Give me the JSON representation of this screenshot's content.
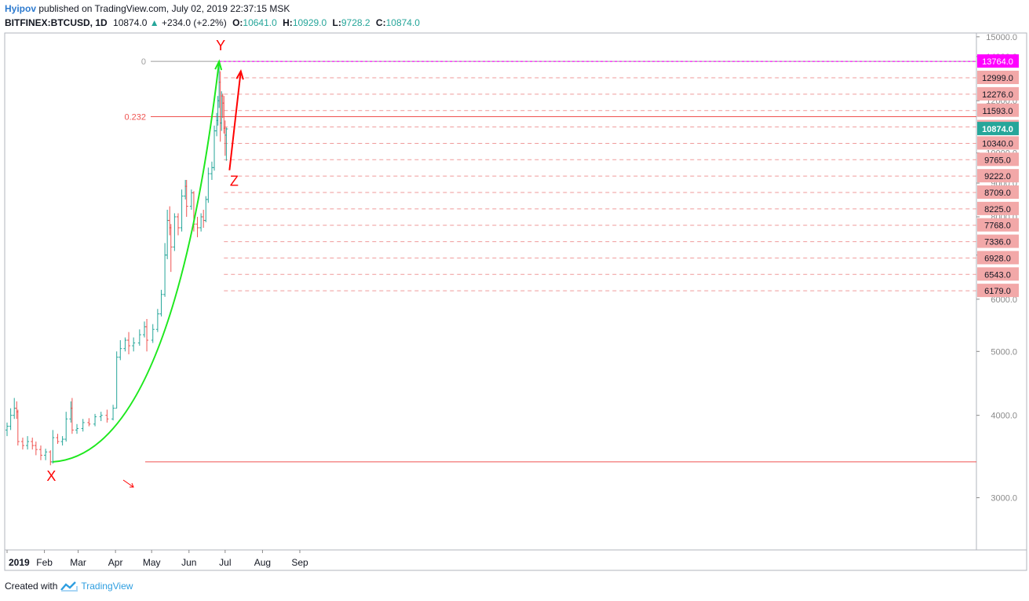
{
  "header": {
    "author": "Hyipov",
    "published": "published on TradingView.com, July 02, 2019 22:37:15 MSK",
    "symbol": "BITFINEX:BTCUSD, 1D",
    "price": "10874.0",
    "change": "+234.0 (+2.2%)",
    "o_label": "O:",
    "o_value": "10641.0",
    "h_label": "H:",
    "h_value": "10929.0",
    "l_label": "L:",
    "l_value": "9728.2",
    "c_label": "C:",
    "c_value": "10874.0"
  },
  "footer": {
    "created": "Created with",
    "brand": "TradingView"
  },
  "colors": {
    "up": "#26a69a",
    "down": "#ef5350",
    "magenta": "#ff00ff",
    "level_bg": "#f2a8a8",
    "price_bg": "#26a69a",
    "curve": "#1de81d",
    "arrow": "#ff0000",
    "axis": "#8a8a8a"
  },
  "chart_data": {
    "type": "candlestick",
    "title": "BITFINEX:BTCUSD, 1D",
    "ylim": [
      2500,
      15200
    ],
    "y_ticks": [
      "3000.0",
      "4000.0",
      "5000.0",
      "6000.0",
      "7000.0",
      "8000.0",
      "9000.0",
      "10000.0",
      "12000.0",
      "14000.0",
      "15000.0"
    ],
    "x_ticks": [
      "2019",
      "Feb",
      "Mar",
      "Apr",
      "May",
      "Jun",
      "Jul",
      "Aug",
      "Sep"
    ],
    "levels": [
      "12999.0",
      "12276.0",
      "11593.0",
      "10949.0",
      "10340.0",
      "9765.0",
      "9222.0",
      "8709.0",
      "8225.0",
      "7768.0",
      "7336.0",
      "6928.0",
      "6543.0",
      "6179.0"
    ],
    "top_level": "13764.0",
    "last_price": "10874.0",
    "fib_labels": [
      "0",
      "0.232"
    ],
    "fib_values": [
      13764,
      11350
    ],
    "support_level": 3400,
    "wave_labels": [
      "X",
      "Y",
      "Z"
    ],
    "wave_points": [
      {
        "date": "2019-02-08",
        "price": 3400
      },
      {
        "date": "2019-06-26",
        "price": 13764
      },
      {
        "date": "2019-07-02",
        "price": 9728
      }
    ],
    "arrow_target": {
      "date": "2019-07-14",
      "price": 13300
    },
    "series": [
      {
        "date": "2019-01-01",
        "o": 3800,
        "h": 3900,
        "l": 3720,
        "c": 3850
      },
      {
        "date": "2019-01-04",
        "o": 3850,
        "h": 4100,
        "l": 3800,
        "c": 4000
      },
      {
        "date": "2019-01-07",
        "o": 4000,
        "h": 4250,
        "l": 3950,
        "c": 4100
      },
      {
        "date": "2019-01-09",
        "o": 4100,
        "h": 4200,
        "l": 3950,
        "c": 4050
      },
      {
        "date": "2019-01-10",
        "o": 4050,
        "h": 4080,
        "l": 3600,
        "c": 3650
      },
      {
        "date": "2019-01-14",
        "o": 3650,
        "h": 3700,
        "l": 3550,
        "c": 3600
      },
      {
        "date": "2019-01-18",
        "o": 3600,
        "h": 3720,
        "l": 3550,
        "c": 3650
      },
      {
        "date": "2019-01-22",
        "o": 3650,
        "h": 3700,
        "l": 3550,
        "c": 3600
      },
      {
        "date": "2019-01-25",
        "o": 3600,
        "h": 3650,
        "l": 3480,
        "c": 3550
      },
      {
        "date": "2019-01-29",
        "o": 3550,
        "h": 3600,
        "l": 3420,
        "c": 3480
      },
      {
        "date": "2019-02-02",
        "o": 3480,
        "h": 3560,
        "l": 3420,
        "c": 3520
      },
      {
        "date": "2019-02-06",
        "o": 3520,
        "h": 3540,
        "l": 3360,
        "c": 3400
      },
      {
        "date": "2019-02-08",
        "o": 3400,
        "h": 3800,
        "l": 3380,
        "c": 3700
      },
      {
        "date": "2019-02-12",
        "o": 3700,
        "h": 3750,
        "l": 3620,
        "c": 3650
      },
      {
        "date": "2019-02-16",
        "o": 3650,
        "h": 3720,
        "l": 3600,
        "c": 3680
      },
      {
        "date": "2019-02-19",
        "o": 3680,
        "h": 4050,
        "l": 3650,
        "c": 3950
      },
      {
        "date": "2019-02-23",
        "o": 3950,
        "h": 4200,
        "l": 3900,
        "c": 4100
      },
      {
        "date": "2019-02-24",
        "o": 4100,
        "h": 4250,
        "l": 3750,
        "c": 3800
      },
      {
        "date": "2019-02-28",
        "o": 3800,
        "h": 3880,
        "l": 3750,
        "c": 3820
      },
      {
        "date": "2019-03-05",
        "o": 3820,
        "h": 3950,
        "l": 3780,
        "c": 3900
      },
      {
        "date": "2019-03-10",
        "o": 3900,
        "h": 3960,
        "l": 3850,
        "c": 3880
      },
      {
        "date": "2019-03-15",
        "o": 3880,
        "h": 4020,
        "l": 3850,
        "c": 3980
      },
      {
        "date": "2019-03-20",
        "o": 3980,
        "h": 4050,
        "l": 3920,
        "c": 4000
      },
      {
        "date": "2019-03-25",
        "o": 4000,
        "h": 4080,
        "l": 3900,
        "c": 3950
      },
      {
        "date": "2019-03-30",
        "o": 3950,
        "h": 4150,
        "l": 3930,
        "c": 4100
      },
      {
        "date": "2019-04-02",
        "o": 4100,
        "h": 5000,
        "l": 4100,
        "c": 4900
      },
      {
        "date": "2019-04-05",
        "o": 4900,
        "h": 5200,
        "l": 4850,
        "c": 5050
      },
      {
        "date": "2019-04-09",
        "o": 5050,
        "h": 5250,
        "l": 5000,
        "c": 5200
      },
      {
        "date": "2019-04-12",
        "o": 5200,
        "h": 5350,
        "l": 4950,
        "c": 5100
      },
      {
        "date": "2019-04-16",
        "o": 5100,
        "h": 5250,
        "l": 5000,
        "c": 5150
      },
      {
        "date": "2019-04-21",
        "o": 5150,
        "h": 5400,
        "l": 5100,
        "c": 5300
      },
      {
        "date": "2019-04-25",
        "o": 5300,
        "h": 5550,
        "l": 5250,
        "c": 5450
      },
      {
        "date": "2019-04-27",
        "o": 5450,
        "h": 5600,
        "l": 5000,
        "c": 5200
      },
      {
        "date": "2019-05-02",
        "o": 5200,
        "h": 5500,
        "l": 5150,
        "c": 5400
      },
      {
        "date": "2019-05-06",
        "o": 5400,
        "h": 5800,
        "l": 5350,
        "c": 5700
      },
      {
        "date": "2019-05-09",
        "o": 5700,
        "h": 6200,
        "l": 5650,
        "c": 6100
      },
      {
        "date": "2019-05-12",
        "o": 6100,
        "h": 7300,
        "l": 6050,
        "c": 7000
      },
      {
        "date": "2019-05-14",
        "o": 7000,
        "h": 8200,
        "l": 6900,
        "c": 7900
      },
      {
        "date": "2019-05-16",
        "o": 7900,
        "h": 8300,
        "l": 7500,
        "c": 7700
      },
      {
        "date": "2019-05-17",
        "o": 7700,
        "h": 7800,
        "l": 6600,
        "c": 7200
      },
      {
        "date": "2019-05-20",
        "o": 7200,
        "h": 8100,
        "l": 7100,
        "c": 8000
      },
      {
        "date": "2019-05-23",
        "o": 8000,
        "h": 8100,
        "l": 7500,
        "c": 7700
      },
      {
        "date": "2019-05-26",
        "o": 7700,
        "h": 8800,
        "l": 7600,
        "c": 8600
      },
      {
        "date": "2019-05-29",
        "o": 8600,
        "h": 9100,
        "l": 8500,
        "c": 8900
      },
      {
        "date": "2019-05-30",
        "o": 8900,
        "h": 9100,
        "l": 8000,
        "c": 8300
      },
      {
        "date": "2019-06-03",
        "o": 8300,
        "h": 8800,
        "l": 8200,
        "c": 8700
      },
      {
        "date": "2019-06-05",
        "o": 8700,
        "h": 8750,
        "l": 7600,
        "c": 7800
      },
      {
        "date": "2019-06-08",
        "o": 7800,
        "h": 8000,
        "l": 7450,
        "c": 7700
      },
      {
        "date": "2019-06-11",
        "o": 7700,
        "h": 8100,
        "l": 7600,
        "c": 8000
      },
      {
        "date": "2019-06-13",
        "o": 8000,
        "h": 8200,
        "l": 7700,
        "c": 7900
      },
      {
        "date": "2019-06-15",
        "o": 7900,
        "h": 8600,
        "l": 7850,
        "c": 8500
      },
      {
        "date": "2019-06-17",
        "o": 8500,
        "h": 9500,
        "l": 8400,
        "c": 9300
      },
      {
        "date": "2019-06-20",
        "o": 9300,
        "h": 9700,
        "l": 9100,
        "c": 9500
      },
      {
        "date": "2019-06-22",
        "o": 9500,
        "h": 11000,
        "l": 9400,
        "c": 10800
      },
      {
        "date": "2019-06-24",
        "o": 10800,
        "h": 11500,
        "l": 10600,
        "c": 11200
      },
      {
        "date": "2019-06-25",
        "o": 11200,
        "h": 12200,
        "l": 11000,
        "c": 12000
      },
      {
        "date": "2019-06-26",
        "o": 12000,
        "h": 13764,
        "l": 11700,
        "c": 12800
      },
      {
        "date": "2019-06-27",
        "o": 12800,
        "h": 13300,
        "l": 10400,
        "c": 11100
      },
      {
        "date": "2019-06-28",
        "o": 11100,
        "h": 12400,
        "l": 10800,
        "c": 12200
      },
      {
        "date": "2019-06-29",
        "o": 12200,
        "h": 12300,
        "l": 11300,
        "c": 11900
      },
      {
        "date": "2019-06-30",
        "o": 11900,
        "h": 12200,
        "l": 10700,
        "c": 10900
      },
      {
        "date": "2019-07-01",
        "o": 10900,
        "h": 11200,
        "l": 9900,
        "c": 10640
      },
      {
        "date": "2019-07-02",
        "o": 10641,
        "h": 10929,
        "l": 9728.2,
        "c": 10874
      }
    ]
  }
}
